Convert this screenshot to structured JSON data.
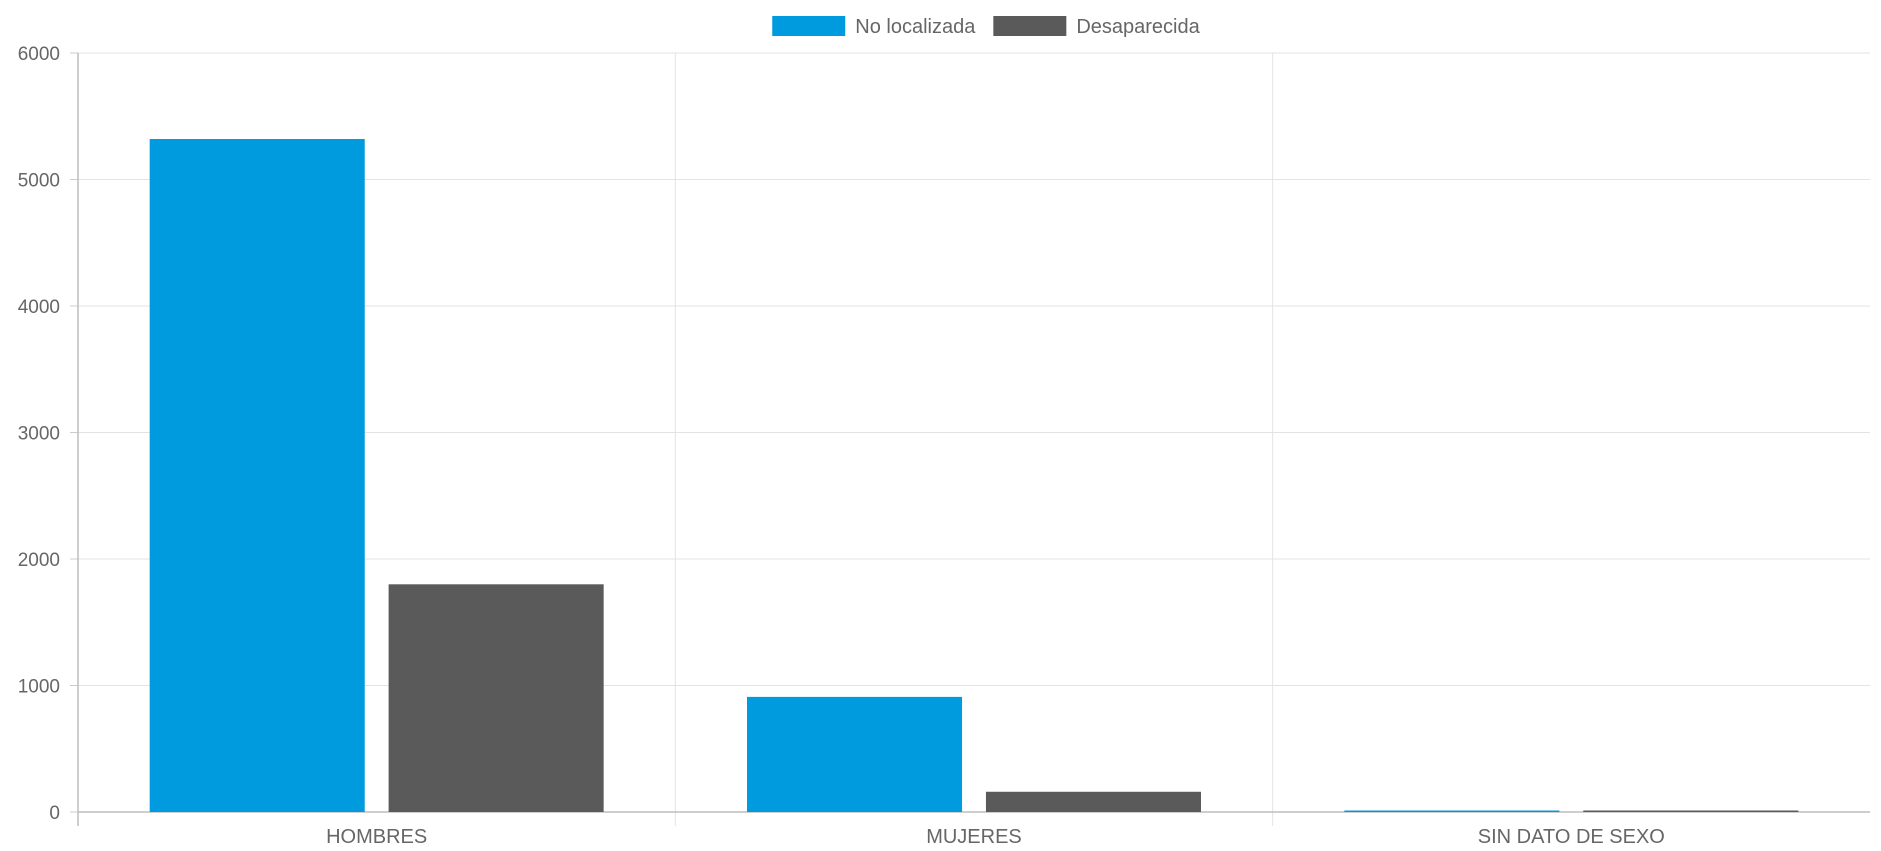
{
  "chart_data": {
    "type": "bar",
    "categories": [
      "HOMBRES",
      "MUJERES",
      "SIN DATO DE SEXO"
    ],
    "series": [
      {
        "name": "No localizada",
        "color": "#009ADE",
        "values": [
          5320,
          910,
          5
        ]
      },
      {
        "name": "Desaparecida",
        "color": "#5A5A5A",
        "values": [
          1800,
          160,
          4
        ]
      }
    ],
    "ylim": [
      0,
      6000
    ],
    "yticks": [
      0,
      1000,
      2000,
      3000,
      4000,
      5000,
      6000
    ],
    "grid": true,
    "legend": "top-center",
    "title": "",
    "xlabel": "",
    "ylabel": ""
  }
}
